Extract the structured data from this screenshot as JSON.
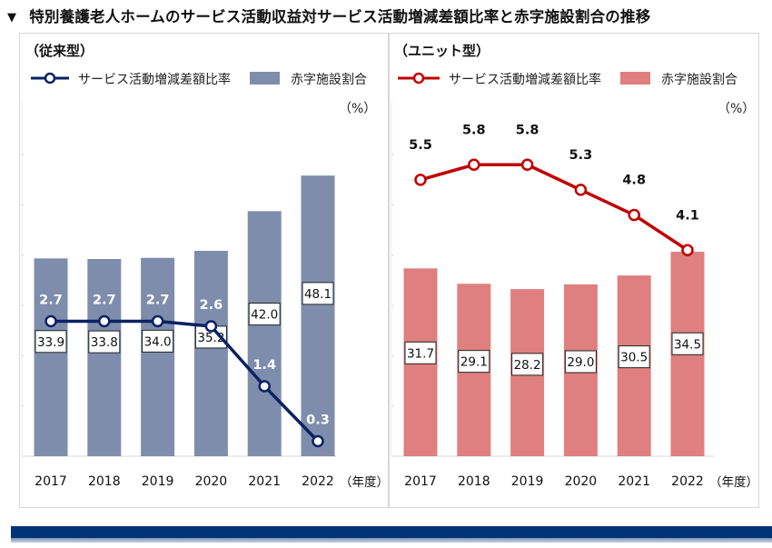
{
  "title": {
    "marker": "▼",
    "text": "特別養護老人ホームのサービス活動収益対サービス活動増減差額比率と赤字施設割合の推移"
  },
  "colors": {
    "left_bar": "#7f8dad",
    "left_line": "#0b2262",
    "right_bar": "#df7f7f",
    "right_line": "#c00000",
    "footer": "#003479"
  },
  "chart_data": [
    {
      "type": "bar+line",
      "panel": "left",
      "title": "（従来型）",
      "unit_label": "（%）",
      "x_unit_label": "（年度）",
      "categories": [
        "2017",
        "2018",
        "2019",
        "2020",
        "2021",
        "2022"
      ],
      "series": [
        {
          "name": "サービス活動増減差額比率",
          "type": "line",
          "axis": "secondary",
          "values": [
            2.7,
            2.7,
            2.7,
            2.6,
            1.4,
            0.3
          ],
          "labels": [
            "2.7",
            "2.7",
            "2.7",
            "2.6",
            "1.4",
            "0.3"
          ]
        },
        {
          "name": "赤字施設割合",
          "type": "bar",
          "axis": "primary",
          "values": [
            33.9,
            33.8,
            34.0,
            35.2,
            42.0,
            48.1
          ],
          "labels": [
            "33.9",
            "33.8",
            "34.0",
            "35.2",
            "42.0",
            "48.1"
          ]
        }
      ],
      "legend": {
        "placement": "top-left",
        "line_label": "サービス活動増減差額比率",
        "bar_label": "赤字施設割合"
      },
      "grid": false
    },
    {
      "type": "bar+line",
      "panel": "right",
      "title": "（ユニット型）",
      "unit_label": "（%）",
      "x_unit_label": "（年度）",
      "categories": [
        "2017",
        "2018",
        "2019",
        "2020",
        "2021",
        "2022"
      ],
      "series": [
        {
          "name": "サービス活動増減差額比率",
          "type": "line",
          "axis": "secondary",
          "values": [
            5.5,
            5.8,
            5.8,
            5.3,
            4.8,
            4.1
          ],
          "labels": [
            "5.5",
            "5.8",
            "5.8",
            "5.3",
            "4.8",
            "4.1"
          ]
        },
        {
          "name": "赤字施設割合",
          "type": "bar",
          "axis": "primary",
          "values": [
            31.7,
            29.1,
            28.2,
            29.0,
            30.5,
            34.5
          ],
          "labels": [
            "31.7",
            "29.1",
            "28.2",
            "29.0",
            "30.5",
            "34.5"
          ]
        }
      ],
      "legend": {
        "placement": "top-left",
        "line_label": "サービス活動増減差額比率",
        "bar_label": "赤字施設割合"
      },
      "grid": false
    }
  ]
}
